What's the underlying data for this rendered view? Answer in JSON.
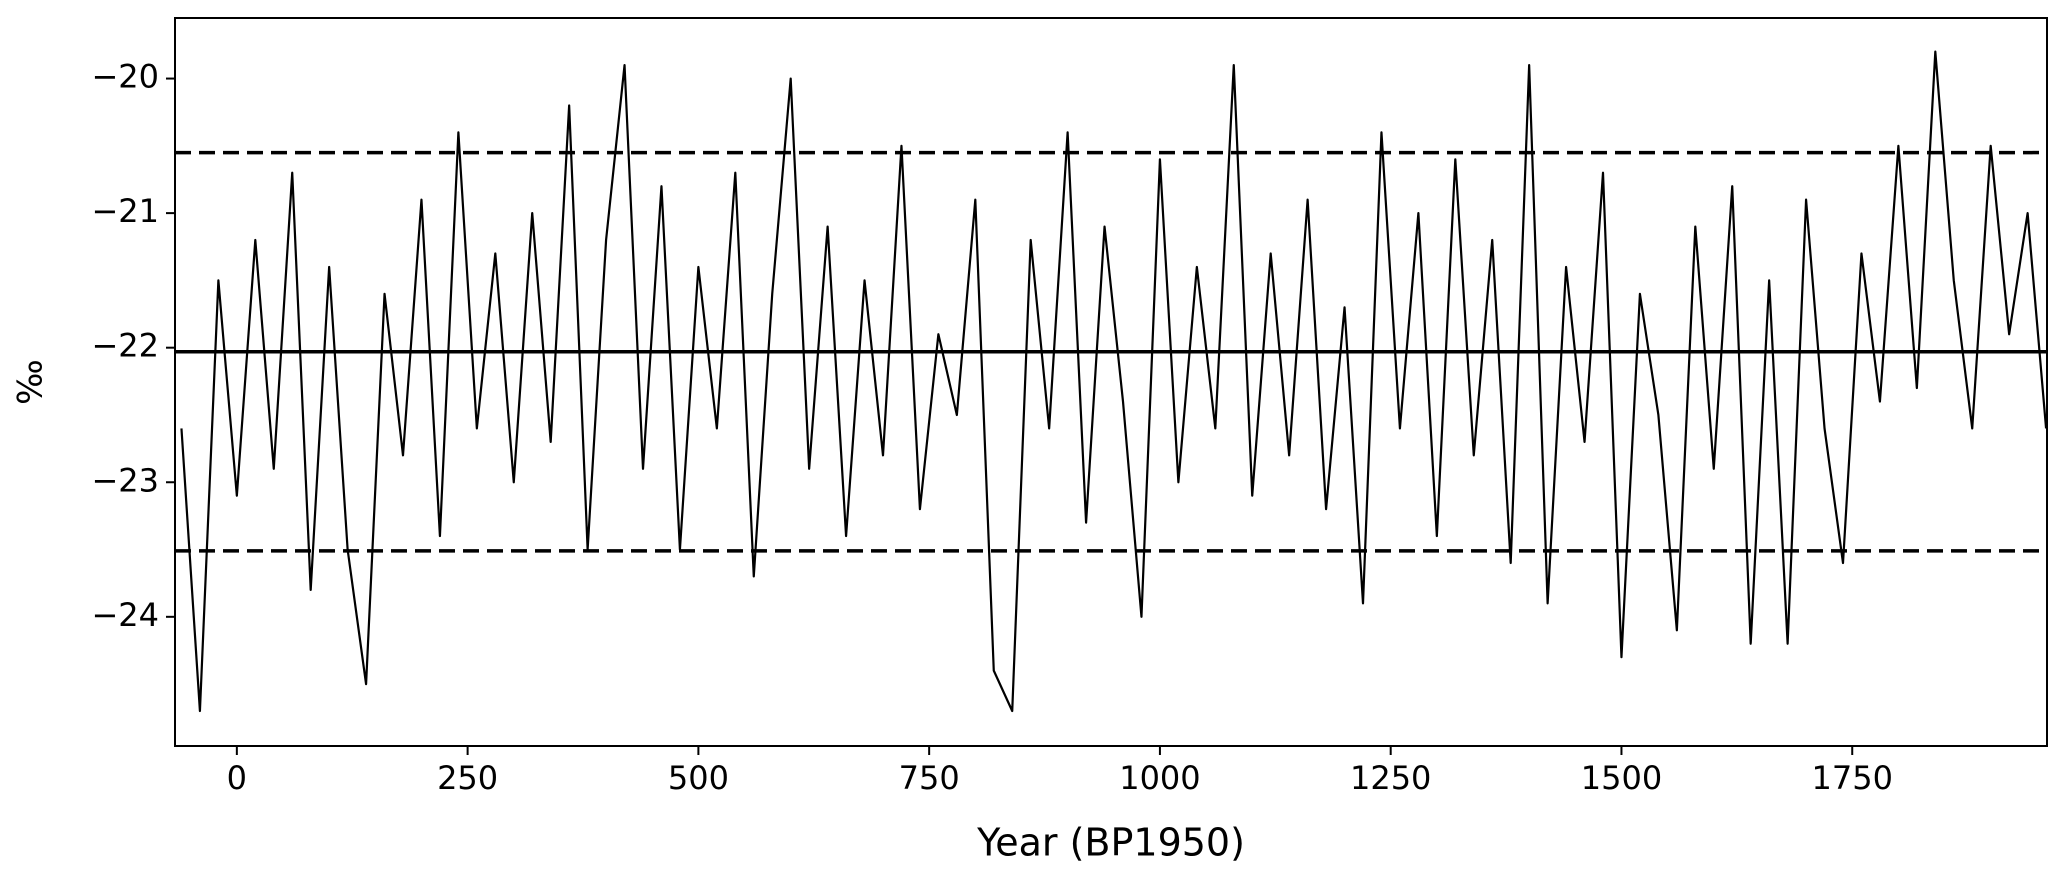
{
  "chart_data": {
    "type": "line",
    "xlabel": "Year (BP1950)",
    "ylabel": "‰",
    "color": "#000000",
    "x": [
      -60,
      -40,
      -20,
      0,
      20,
      40,
      60,
      80,
      100,
      120,
      140,
      160,
      180,
      200,
      220,
      240,
      260,
      280,
      300,
      320,
      340,
      360,
      380,
      400,
      420,
      440,
      460,
      480,
      500,
      520,
      540,
      560,
      580,
      600,
      620,
      640,
      660,
      680,
      700,
      720,
      740,
      760,
      780,
      800,
      820,
      840,
      860,
      880,
      900,
      920,
      940,
      960,
      980,
      1000,
      1020,
      1040,
      1060,
      1080,
      1100,
      1120,
      1140,
      1160,
      1180,
      1200,
      1220,
      1240,
      1260,
      1280,
      1300,
      1320,
      1340,
      1360,
      1380,
      1400,
      1420,
      1440,
      1460,
      1480,
      1500,
      1520,
      1540,
      1560,
      1580,
      1600,
      1620,
      1640,
      1660,
      1680,
      1700,
      1720,
      1740,
      1760,
      1780,
      1800,
      1820,
      1840,
      1860,
      1880,
      1900,
      1920,
      1940,
      1960
    ],
    "values": [
      -22.6,
      -24.7,
      -21.5,
      -23.1,
      -21.2,
      -22.9,
      -20.7,
      -23.8,
      -21.4,
      -23.5,
      -24.5,
      -21.6,
      -22.8,
      -20.9,
      -23.4,
      -20.4,
      -22.6,
      -21.3,
      -23.0,
      -21.0,
      -22.7,
      -20.2,
      -23.5,
      -21.2,
      -19.9,
      -22.9,
      -20.8,
      -23.5,
      -21.4,
      -22.6,
      -20.7,
      -23.7,
      -21.6,
      -20.0,
      -22.9,
      -21.1,
      -23.4,
      -21.5,
      -22.8,
      -20.5,
      -23.2,
      -21.9,
      -22.5,
      -20.9,
      -24.4,
      -24.7,
      -21.2,
      -22.6,
      -20.4,
      -23.3,
      -21.1,
      -22.4,
      -24.0,
      -20.6,
      -23.0,
      -21.4,
      -22.6,
      -19.9,
      -23.1,
      -21.3,
      -22.8,
      -20.9,
      -23.2,
      -21.7,
      -23.9,
      -20.4,
      -22.6,
      -21.0,
      -23.4,
      -20.6,
      -22.8,
      -21.2,
      -23.6,
      -19.9,
      -23.9,
      -21.4,
      -22.7,
      -20.7,
      -24.3,
      -21.6,
      -22.5,
      -24.1,
      -21.1,
      -22.9,
      -20.8,
      -24.2,
      -21.5,
      -24.2,
      -20.9,
      -22.6,
      -23.6,
      -21.3,
      -22.4,
      -20.5,
      -22.3,
      -19.8,
      -21.5,
      -22.6,
      -20.5,
      -21.9,
      -21.0,
      -22.6
    ],
    "xlim": [
      -67,
      1961
    ],
    "ylim": [
      -24.96,
      -19.55
    ],
    "xticks": [
      0,
      250,
      500,
      750,
      1000,
      1250,
      1500,
      1750
    ],
    "yticks": [
      {
        "value": -24,
        "label": "−24"
      },
      {
        "value": -23,
        "label": "−23"
      },
      {
        "value": -22,
        "label": "−22"
      },
      {
        "value": -21,
        "label": "−21"
      },
      {
        "value": -20,
        "label": "−20"
      }
    ],
    "hlines": [
      {
        "value": -20.55,
        "style": "dashed"
      },
      {
        "value": -22.03,
        "style": "solid"
      },
      {
        "value": -23.51,
        "style": "dashed"
      }
    ],
    "grid": false
  }
}
